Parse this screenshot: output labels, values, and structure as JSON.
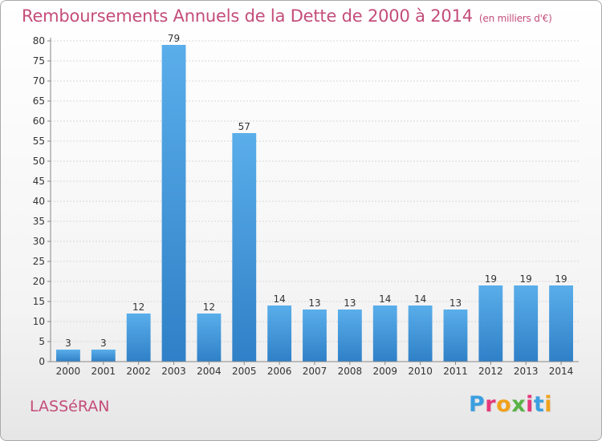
{
  "title": "Remboursements Annuels de la Dette de 2000 à 2014",
  "unit": "(en milliers d'€)",
  "town": "LASSéRAN",
  "logo": {
    "text": "Proxiti",
    "letter_colors": [
      "#3b9fe0",
      "#e5387a",
      "#f0a21a",
      "#5ab246",
      "#e5387a",
      "#3b9fe0",
      "#f0a21a"
    ]
  },
  "colors": {
    "title": "#c44d7a",
    "bar_light": "#5aaeea",
    "bar_dark": "#2f80c7",
    "grid": "#d8d8d8",
    "axis": "#888888"
  },
  "chart_data": {
    "type": "bar",
    "categories": [
      "2000",
      "2001",
      "2002",
      "2003",
      "2004",
      "2005",
      "2006",
      "2007",
      "2008",
      "2009",
      "2010",
      "2011",
      "2012",
      "2013",
      "2014"
    ],
    "values": [
      3,
      3,
      12,
      79,
      12,
      57,
      14,
      13,
      13,
      14,
      14,
      13,
      19,
      19,
      19
    ],
    "ylim": [
      0,
      80
    ],
    "yticks": [
      0,
      5,
      10,
      15,
      20,
      25,
      30,
      35,
      40,
      45,
      50,
      55,
      60,
      65,
      70,
      75,
      80
    ],
    "grid": true,
    "data_labels": true
  }
}
